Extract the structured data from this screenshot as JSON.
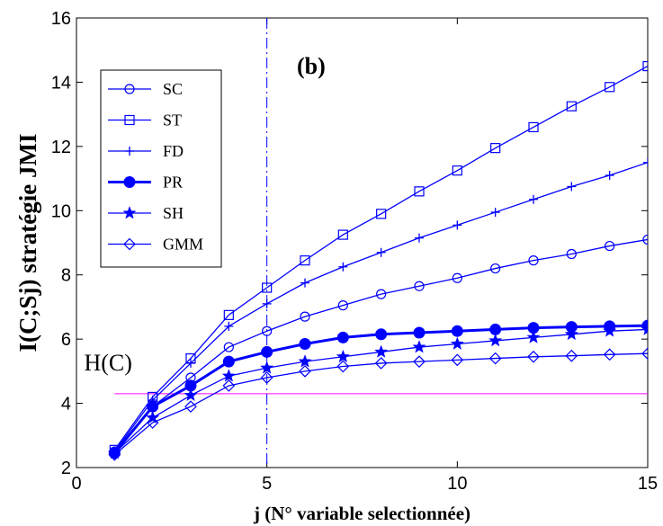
{
  "chart_data": {
    "type": "line",
    "panel_label": "(b)",
    "xlabel": "j (N° variable selectionnée)",
    "ylabel": "I(C;Sj) stratégie JMI",
    "xlim": [
      0,
      15
    ],
    "ylim": [
      2,
      16
    ],
    "xticks": [
      0,
      5,
      10,
      15
    ],
    "yticks": [
      2,
      4,
      6,
      8,
      10,
      12,
      14,
      16
    ],
    "grid": false,
    "legend_position": "top-left",
    "x": [
      1,
      2,
      3,
      4,
      5,
      6,
      7,
      8,
      9,
      10,
      11,
      12,
      13,
      14,
      15
    ],
    "series": [
      {
        "name": "SC",
        "marker": "circle",
        "color": "#0000ff",
        "bold": false,
        "values": [
          2.5,
          3.9,
          4.8,
          5.75,
          6.25,
          6.7,
          7.05,
          7.4,
          7.65,
          7.9,
          8.2,
          8.45,
          8.65,
          8.9,
          9.1
        ]
      },
      {
        "name": "ST",
        "marker": "square",
        "color": "#0000ff",
        "bold": false,
        "values": [
          2.55,
          4.2,
          5.4,
          6.75,
          7.6,
          8.45,
          9.25,
          9.9,
          10.6,
          11.25,
          11.95,
          12.6,
          13.25,
          13.85,
          14.5
        ]
      },
      {
        "name": "FD",
        "marker": "plus",
        "color": "#0000ff",
        "bold": false,
        "values": [
          2.5,
          4.1,
          5.25,
          6.4,
          7.1,
          7.75,
          8.25,
          8.7,
          9.15,
          9.55,
          9.95,
          10.35,
          10.75,
          11.1,
          11.5
        ]
      },
      {
        "name": "PR",
        "marker": "filled-circle",
        "color": "#0000ff",
        "bold": true,
        "values": [
          2.45,
          3.9,
          4.55,
          5.3,
          5.6,
          5.85,
          6.05,
          6.15,
          6.2,
          6.25,
          6.3,
          6.35,
          6.38,
          6.4,
          6.42
        ]
      },
      {
        "name": "SH",
        "marker": "star",
        "color": "#0000ff",
        "bold": false,
        "values": [
          2.45,
          3.55,
          4.25,
          4.85,
          5.1,
          5.3,
          5.45,
          5.6,
          5.75,
          5.85,
          5.95,
          6.05,
          6.15,
          6.25,
          6.3
        ]
      },
      {
        "name": "GMM",
        "marker": "diamond",
        "color": "#0000ff",
        "bold": false,
        "values": [
          2.4,
          3.4,
          3.9,
          4.55,
          4.8,
          5.0,
          5.15,
          5.25,
          5.3,
          5.35,
          5.4,
          5.45,
          5.48,
          5.52,
          5.55
        ]
      }
    ],
    "reference_lines": [
      {
        "type": "horizontal",
        "y": 4.3,
        "label": "H(C)",
        "color": "#ff00ff",
        "style": "solid"
      },
      {
        "type": "vertical",
        "x": 5,
        "label": "",
        "color": "#0000ff",
        "style": "dash-dot"
      }
    ]
  }
}
